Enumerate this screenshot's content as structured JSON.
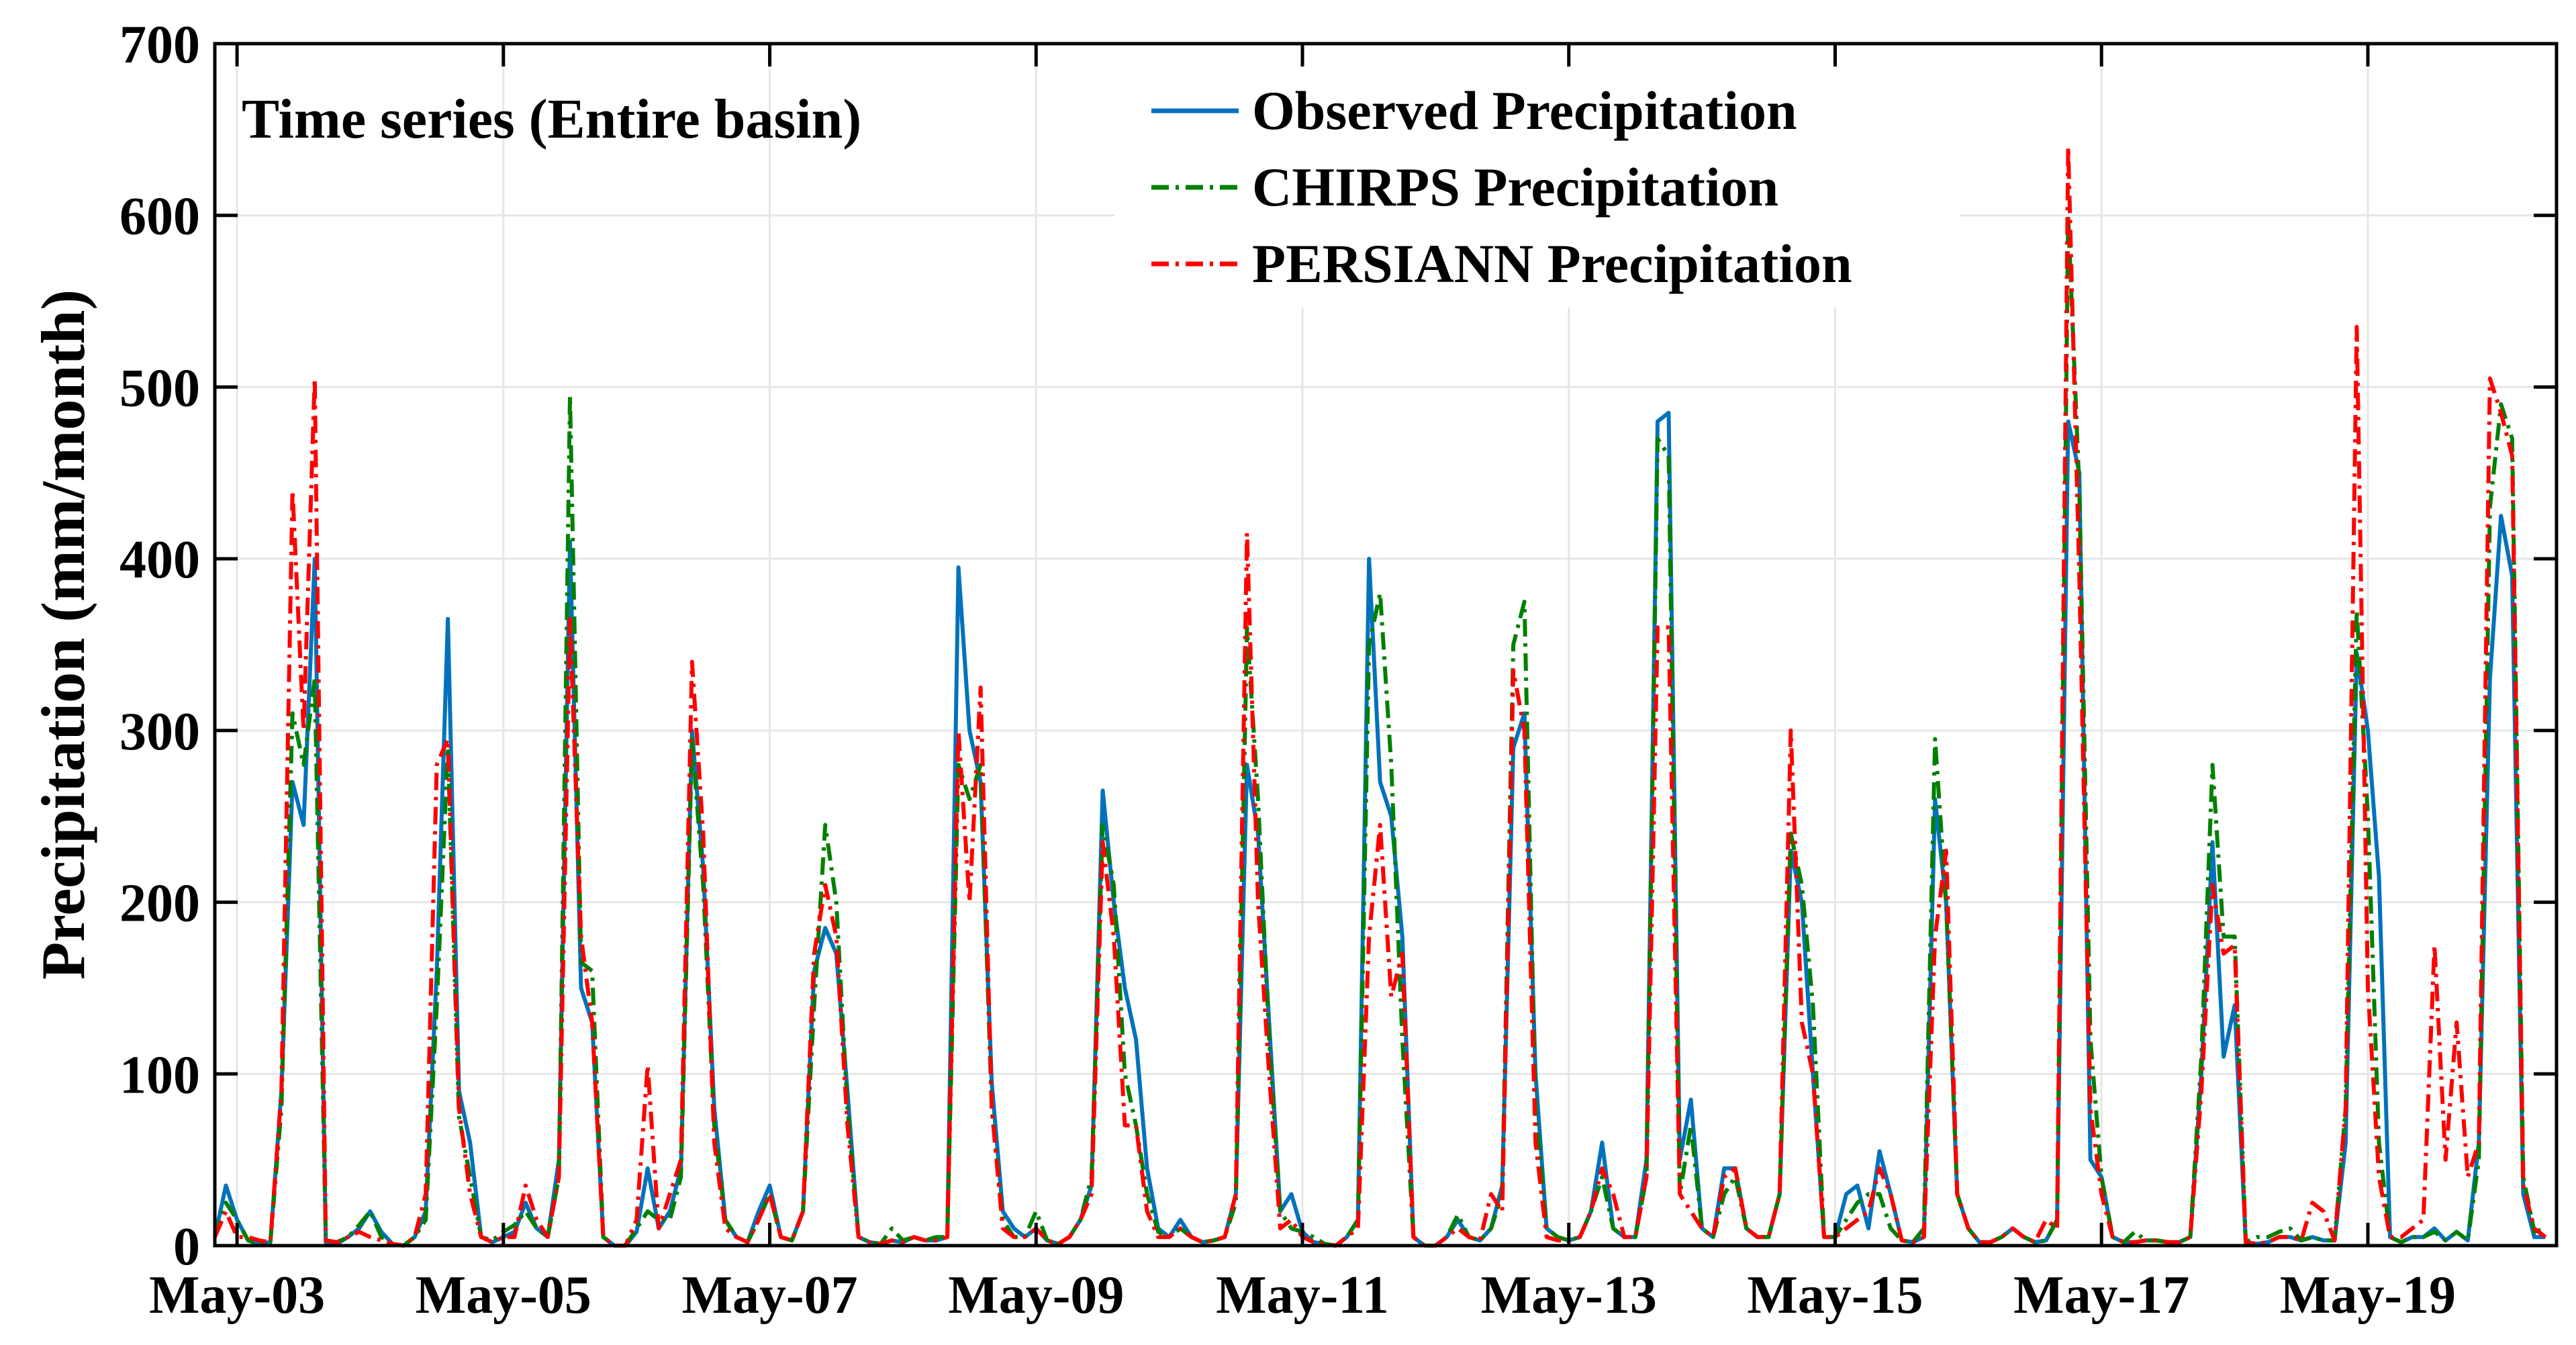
{
  "chart_data": {
    "type": "line",
    "title": "Time series (Entire basin)",
    "xlabel": "",
    "ylabel": "Precipitation (mm/month)",
    "ylim": [
      0,
      700
    ],
    "yticks": [
      0,
      100,
      200,
      300,
      400,
      500,
      600,
      700
    ],
    "x_start": "2003-03",
    "x_step": "1 month",
    "x_tick_labels": [
      "May-03",
      "May-05",
      "May-07",
      "May-09",
      "May-11",
      "May-13",
      "May-15",
      "May-17",
      "May-19"
    ],
    "x_tick_months": [
      2,
      26,
      50,
      74,
      98,
      122,
      146,
      170,
      194
    ],
    "grid": true,
    "legend_position": "top-center",
    "series": [
      {
        "name": "Observed Precipitation",
        "color": "#0072BD",
        "dash": "solid",
        "values": [
          5,
          35,
          15,
          3,
          1,
          2,
          90,
          270,
          245,
          400,
          2,
          1,
          5,
          10,
          20,
          8,
          1,
          0,
          5,
          20,
          160,
          365,
          90,
          60,
          5,
          2,
          5,
          8,
          25,
          10,
          5,
          50,
          410,
          150,
          130,
          5,
          0,
          0,
          8,
          45,
          10,
          20,
          45,
          300,
          220,
          80,
          15,
          5,
          2,
          20,
          35,
          5,
          3,
          20,
          160,
          185,
          170,
          90,
          5,
          2,
          1,
          3,
          2,
          5,
          3,
          3,
          5,
          395,
          300,
          270,
          95,
          20,
          10,
          5,
          10,
          3,
          1,
          5,
          15,
          35,
          265,
          200,
          150,
          120,
          45,
          10,
          5,
          15,
          5,
          2,
          3,
          5,
          30,
          280,
          240,
          130,
          20,
          30,
          8,
          2,
          1,
          0,
          5,
          15,
          400,
          270,
          250,
          180,
          5,
          0,
          0,
          5,
          15,
          5,
          3,
          10,
          35,
          290,
          310,
          100,
          10,
          5,
          3,
          5,
          20,
          60,
          10,
          5,
          5,
          50,
          480,
          485,
          50,
          85,
          10,
          5,
          45,
          45,
          10,
          5,
          5,
          30,
          230,
          200,
          100,
          5,
          5,
          30,
          35,
          10,
          55,
          30,
          3,
          2,
          5,
          260,
          200,
          30,
          10,
          2,
          2,
          5,
          10,
          5,
          2,
          3,
          15,
          480,
          450,
          50,
          40,
          5,
          2,
          2,
          3,
          3,
          2,
          2,
          5,
          100,
          235,
          110,
          140,
          2,
          1,
          2,
          5,
          5,
          3,
          5,
          3,
          3,
          60,
          345,
          300,
          215,
          5,
          2,
          5,
          5,
          10,
          3,
          8,
          3,
          60,
          330,
          425,
          390,
          30,
          5,
          5
        ]
      },
      {
        "name": "CHIRPS Precipitation",
        "color": "#008000",
        "dash": "dash-dot",
        "values": [
          5,
          25,
          15,
          3,
          1,
          2,
          80,
          310,
          280,
          330,
          3,
          2,
          5,
          12,
          20,
          5,
          1,
          0,
          5,
          15,
          140,
          290,
          75,
          40,
          5,
          3,
          8,
          12,
          20,
          10,
          5,
          40,
          495,
          165,
          160,
          5,
          0,
          0,
          10,
          20,
          15,
          15,
          40,
          295,
          210,
          70,
          15,
          5,
          2,
          15,
          30,
          5,
          3,
          20,
          140,
          245,
          200,
          80,
          5,
          2,
          1,
          10,
          3,
          5,
          3,
          5,
          5,
          280,
          260,
          280,
          80,
          15,
          5,
          5,
          20,
          3,
          1,
          5,
          15,
          40,
          245,
          210,
          100,
          70,
          30,
          8,
          5,
          10,
          5,
          2,
          3,
          5,
          25,
          360,
          260,
          120,
          20,
          10,
          8,
          5,
          1,
          0,
          5,
          15,
          350,
          380,
          280,
          120,
          5,
          0,
          0,
          5,
          18,
          5,
          3,
          10,
          30,
          350,
          375,
          80,
          10,
          5,
          3,
          5,
          20,
          40,
          10,
          5,
          5,
          40,
          470,
          460,
          30,
          70,
          10,
          5,
          30,
          40,
          10,
          5,
          5,
          30,
          240,
          210,
          140,
          5,
          5,
          15,
          25,
          30,
          30,
          10,
          3,
          2,
          10,
          295,
          200,
          30,
          10,
          2,
          2,
          5,
          10,
          5,
          2,
          3,
          15,
          600,
          440,
          120,
          40,
          5,
          2,
          8,
          3,
          3,
          2,
          2,
          5,
          110,
          280,
          180,
          180,
          2,
          5,
          5,
          8,
          10,
          3,
          5,
          3,
          3,
          80,
          370,
          250,
          60,
          5,
          2,
          5,
          5,
          8,
          3,
          8,
          3,
          50,
          430,
          490,
          470,
          40,
          8,
          10
        ]
      },
      {
        "name": "PERSIANN Precipitation",
        "color": "#FF0000",
        "dash": "dash-dot",
        "values": [
          5,
          20,
          5,
          5,
          3,
          2,
          90,
          440,
          300,
          505,
          3,
          2,
          5,
          8,
          5,
          3,
          1,
          0,
          5,
          30,
          280,
          295,
          80,
          30,
          5,
          2,
          5,
          5,
          35,
          15,
          5,
          40,
          365,
          180,
          130,
          5,
          0,
          0,
          15,
          105,
          10,
          30,
          50,
          340,
          240,
          60,
          10,
          5,
          2,
          15,
          30,
          5,
          3,
          20,
          170,
          210,
          180,
          70,
          5,
          2,
          1,
          3,
          2,
          5,
          3,
          3,
          5,
          300,
          200,
          325,
          80,
          10,
          5,
          5,
          10,
          3,
          1,
          5,
          15,
          30,
          235,
          180,
          70,
          70,
          20,
          5,
          5,
          10,
          5,
          2,
          3,
          5,
          30,
          415,
          200,
          100,
          10,
          15,
          5,
          2,
          1,
          0,
          5,
          10,
          180,
          245,
          145,
          170,
          5,
          0,
          0,
          5,
          10,
          5,
          3,
          30,
          20,
          335,
          300,
          60,
          5,
          3,
          3,
          5,
          20,
          45,
          30,
          5,
          5,
          40,
          360,
          360,
          30,
          20,
          10,
          5,
          40,
          45,
          10,
          5,
          5,
          30,
          300,
          130,
          100,
          5,
          5,
          10,
          15,
          20,
          45,
          30,
          3,
          2,
          5,
          180,
          230,
          30,
          10,
          2,
          2,
          5,
          10,
          5,
          2,
          15,
          10,
          640,
          390,
          80,
          30,
          5,
          2,
          2,
          3,
          3,
          2,
          2,
          5,
          90,
          210,
          170,
          175,
          2,
          1,
          2,
          5,
          5,
          3,
          25,
          20,
          3,
          80,
          535,
          150,
          40,
          5,
          5,
          10,
          15,
          175,
          50,
          130,
          40,
          60,
          505,
          485,
          460,
          35,
          10,
          5
        ]
      }
    ]
  }
}
